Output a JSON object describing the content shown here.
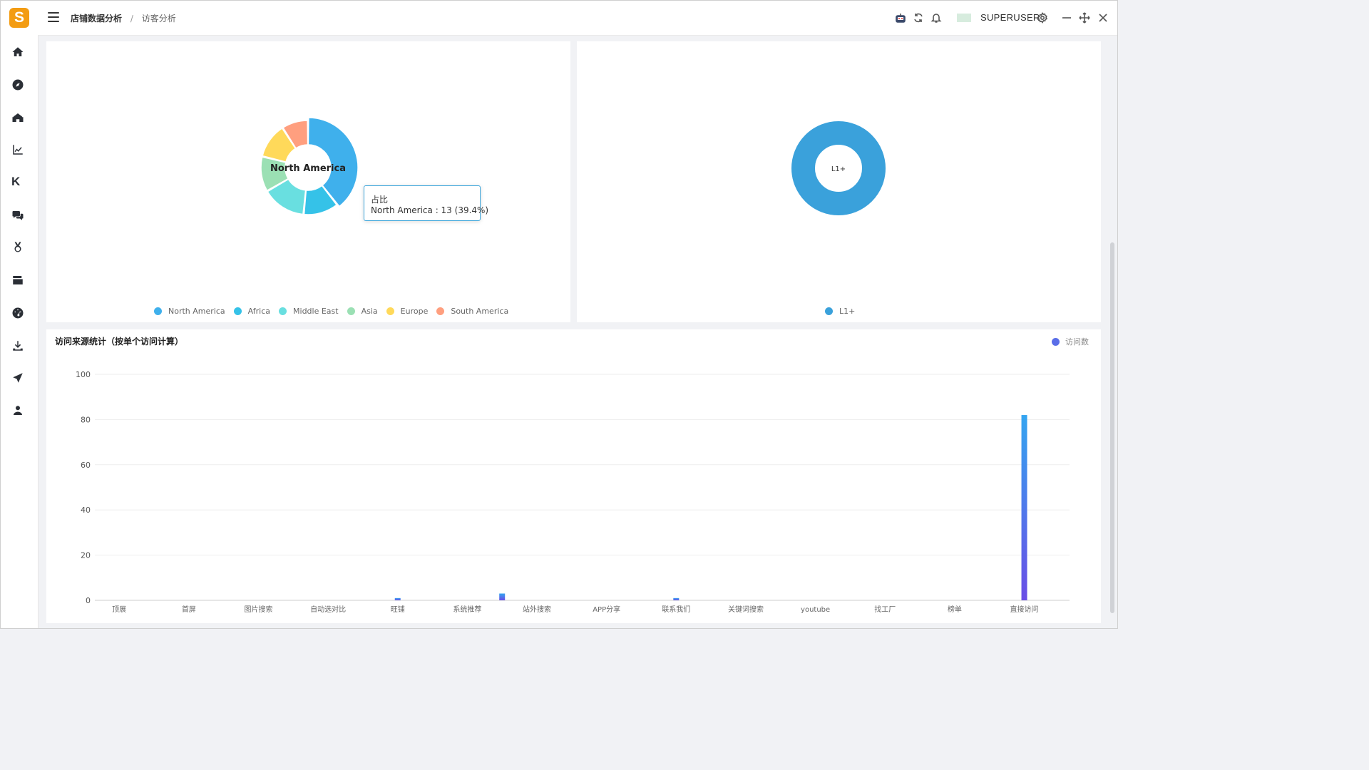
{
  "app": {
    "logo_letter": "S",
    "breadcrumb": [
      "店铺数据分析",
      "访客分析"
    ],
    "breadcrumb_sep": "/",
    "username": "SUPERUSER"
  },
  "header_icons": [
    "robot-icon",
    "refresh-icon",
    "bell-icon",
    "settings-icon",
    "minimize-icon",
    "move-icon",
    "close-icon"
  ],
  "sidebar_icons": [
    "home-icon",
    "compass-icon",
    "shop-icon",
    "line-chart-icon",
    "k-icon",
    "chat-icon",
    "medal-icon",
    "card-icon",
    "dashboard-icon",
    "download-icon",
    "send-icon",
    "user-icon"
  ],
  "sidebar_k_label": "K",
  "region_pie": {
    "center_label": "North America",
    "tooltip_title": "占比",
    "tooltip_body": "North America : 13 (39.4%)",
    "colors": [
      "#3fb0ec",
      "#35c2e8",
      "#69dfe0",
      "#9be0b4",
      "#ffd95a",
      "#ff9f7f"
    ]
  },
  "level_pie": {
    "center_label": "L1+",
    "color": "#3aa1db"
  },
  "bar_panel": {
    "title": "访问来源统计（按单个访问计算）",
    "legend_label": "访问数"
  },
  "chart_data": [
    {
      "type": "pie",
      "categories": [
        "North America",
        "Africa",
        "Middle East",
        "Asia",
        "Europe",
        "South America"
      ],
      "values": [
        13,
        4,
        5,
        4,
        4,
        3
      ]
    },
    {
      "type": "pie",
      "categories": [
        "L1+"
      ],
      "values": [
        1
      ]
    },
    {
      "type": "bar",
      "categories": [
        "顶展",
        "首屏",
        "图片搜索",
        "自动选对比",
        "旺铺",
        "系统推荐",
        "站外搜索",
        "APP分享",
        "联系我们",
        "关键词搜索",
        "youtube",
        "找工厂",
        "榜单",
        "直接访问"
      ],
      "series": [
        {
          "name": "访问数",
          "values": [
            0,
            0,
            0,
            0,
            1,
            3,
            0,
            0,
            1,
            0,
            0,
            0,
            0,
            82
          ]
        }
      ],
      "yticks": [
        "0",
        "20",
        "40",
        "60",
        "80",
        "100"
      ],
      "ylim": [
        0,
        100
      ]
    }
  ]
}
